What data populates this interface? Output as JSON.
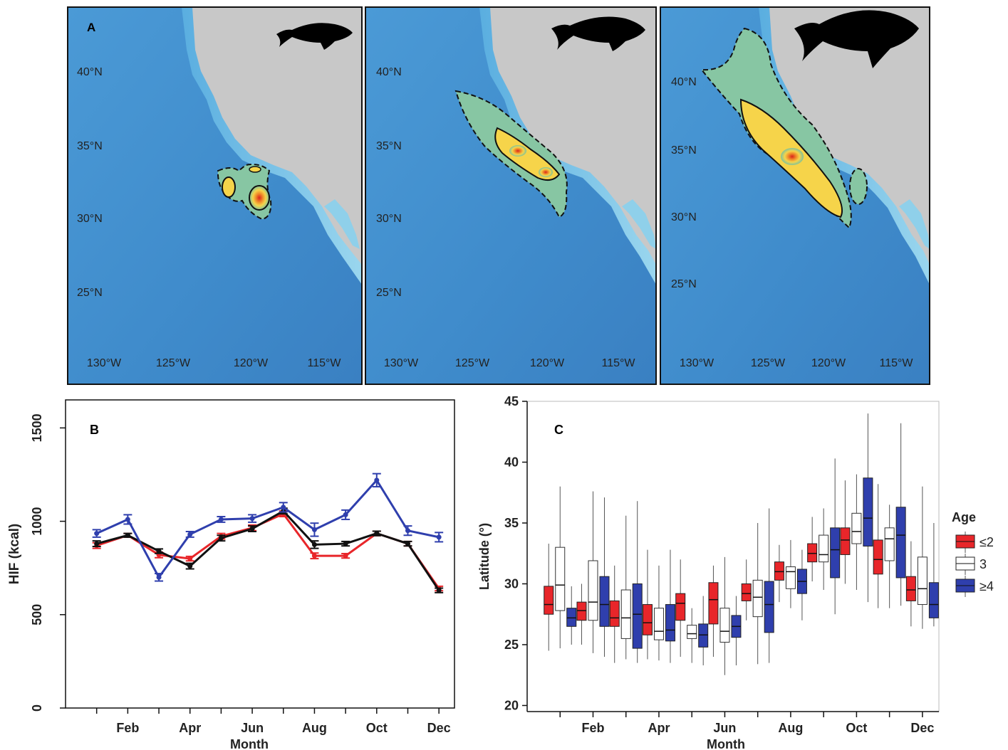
{
  "figure": {
    "panel_letters": [
      "A",
      "B",
      "C"
    ]
  },
  "maps": {
    "lat_labels": [
      "40°N",
      "35°N",
      "30°N",
      "25°N"
    ],
    "lon_labels": [
      "130°W",
      "125°W",
      "120°W",
      "115°W"
    ],
    "colors": {
      "ocean": "#3f8fcf",
      "land": "#c8c8c8",
      "shelf": "#8fd0ea",
      "hot": "#d8281e",
      "warm": "#f2c23a"
    }
  },
  "chart_data": [
    {
      "panel": "B",
      "type": "line",
      "xlabel": "Month",
      "ylabel": "HIF (kcal)",
      "x": [
        1,
        2,
        3,
        4,
        5,
        6,
        7,
        8,
        9,
        10,
        11,
        12
      ],
      "tick_labels": [
        "Feb",
        "Apr",
        "Jun",
        "Aug",
        "Oct",
        "Dec"
      ],
      "tick_positions": [
        2,
        4,
        6,
        8,
        10,
        12
      ],
      "ylim": [
        0,
        1650
      ],
      "yticks": [
        0,
        500,
        1000,
        1500
      ],
      "series": [
        {
          "color": "#e8262a",
          "values": [
            870,
            925,
            820,
            800,
            920,
            965,
            1040,
            815,
            815,
            935,
            880,
            640
          ],
          "err": [
            15,
            10,
            15,
            12,
            15,
            15,
            15,
            15,
            12,
            12,
            12,
            12
          ]
        },
        {
          "color": "#111111",
          "values": [
            880,
            925,
            840,
            760,
            910,
            960,
            1055,
            875,
            880,
            935,
            880,
            630
          ],
          "err": [
            15,
            10,
            12,
            15,
            15,
            15,
            15,
            20,
            12,
            12,
            12,
            12
          ]
        },
        {
          "color": "#2f3fad",
          "values": [
            935,
            1010,
            700,
            930,
            1010,
            1015,
            1075,
            955,
            1035,
            1220,
            950,
            915
          ],
          "err": [
            20,
            25,
            20,
            15,
            15,
            20,
            25,
            35,
            25,
            35,
            25,
            25
          ]
        }
      ]
    },
    {
      "panel": "C",
      "type": "box",
      "xlabel": "Month",
      "ylabel": "Latitude (°)",
      "ylim": [
        19.5,
        45
      ],
      "yticks": [
        20,
        25,
        30,
        35,
        40,
        45
      ],
      "tick_labels": [
        "Feb",
        "Apr",
        "Jun",
        "Aug",
        "Oct",
        "Dec"
      ],
      "tick_positions": [
        2,
        4,
        6,
        8,
        10,
        12
      ],
      "legend": {
        "title": "Age",
        "position": "right",
        "items": [
          {
            "label": "≤2",
            "color": "#e8262a"
          },
          {
            "label": "3",
            "color": "#ffffff"
          },
          {
            "label": "≥4",
            "color": "#2f3fad"
          }
        ]
      },
      "groups": [
        {
          "month": 1,
          "boxes": [
            [
              24.5,
              27.5,
              28.3,
              29.8,
              33.3
            ],
            [
              24.7,
              27.8,
              29.9,
              33.0,
              38.0
            ],
            [
              25.0,
              26.5,
              27.2,
              28.0,
              29.8
            ]
          ]
        },
        {
          "month": 2,
          "boxes": [
            [
              25.0,
              27.0,
              27.8,
              28.5,
              30.0
            ],
            [
              24.3,
              27.0,
              28.5,
              31.9,
              37.6
            ],
            [
              24.0,
              26.5,
              28.3,
              30.6,
              37.1
            ]
          ]
        },
        {
          "month": 3,
          "boxes": [
            [
              23.5,
              26.5,
              27.2,
              28.6,
              31.5
            ],
            [
              23.8,
              25.5,
              27.2,
              29.5,
              35.6
            ],
            [
              23.5,
              24.7,
              27.5,
              30.0,
              36.8
            ]
          ]
        },
        {
          "month": 4,
          "boxes": [
            [
              23.8,
              25.8,
              26.8,
              28.3,
              32.8
            ],
            [
              23.7,
              25.4,
              26.1,
              28.0,
              31.5
            ],
            [
              23.5,
              25.3,
              26.2,
              28.3,
              32.8
            ]
          ]
        },
        {
          "month": 5,
          "boxes": [
            [
              24.0,
              27.0,
              28.4,
              29.2,
              32.0
            ],
            [
              23.5,
              25.5,
              25.9,
              26.6,
              28.0
            ],
            [
              23.3,
              24.8,
              25.8,
              26.7,
              29.0
            ]
          ]
        },
        {
          "month": 6,
          "boxes": [
            [
              24.0,
              26.7,
              28.7,
              30.1,
              31.5
            ],
            [
              22.5,
              25.2,
              26.1,
              28.0,
              32.2
            ],
            [
              23.3,
              25.6,
              26.5,
              27.4,
              29.0
            ]
          ]
        },
        {
          "month": 7,
          "boxes": [
            [
              27.0,
              28.6,
              29.2,
              30.0,
              32.0
            ],
            [
              23.4,
              27.3,
              28.9,
              30.3,
              35.0
            ],
            [
              23.5,
              26.0,
              28.3,
              30.2,
              36.2
            ]
          ]
        },
        {
          "month": 8,
          "boxes": [
            [
              28.5,
              30.3,
              31.0,
              31.8,
              33.2
            ],
            [
              28.0,
              29.6,
              31.0,
              31.4,
              33.6
            ],
            [
              27.0,
              29.2,
              30.2,
              31.2,
              32.8
            ]
          ]
        },
        {
          "month": 9,
          "boxes": [
            [
              30.2,
              31.8,
              32.5,
              33.3,
              35.5
            ],
            [
              29.5,
              31.8,
              32.4,
              34.0,
              36.2
            ],
            [
              27.5,
              30.5,
              32.8,
              34.6,
              40.3
            ]
          ]
        },
        {
          "month": 10,
          "boxes": [
            [
              30.0,
              32.4,
              33.6,
              34.6,
              38.5
            ],
            [
              29.5,
              33.3,
              34.3,
              35.8,
              39.0
            ],
            [
              28.5,
              33.1,
              35.4,
              38.7,
              44.0
            ]
          ]
        },
        {
          "month": 11,
          "boxes": [
            [
              28.0,
              30.8,
              32.0,
              33.6,
              38.2
            ],
            [
              28.0,
              31.9,
              33.7,
              34.6,
              36.5
            ],
            [
              28.2,
              30.5,
              34.0,
              36.3,
              43.2
            ]
          ]
        },
        {
          "month": 12,
          "boxes": [
            [
              26.5,
              28.6,
              29.5,
              30.6,
              33.5
            ],
            [
              26.3,
              28.3,
              29.6,
              32.2,
              38.0
            ],
            [
              26.5,
              27.2,
              28.3,
              30.1,
              35.0
            ]
          ]
        }
      ]
    }
  ]
}
